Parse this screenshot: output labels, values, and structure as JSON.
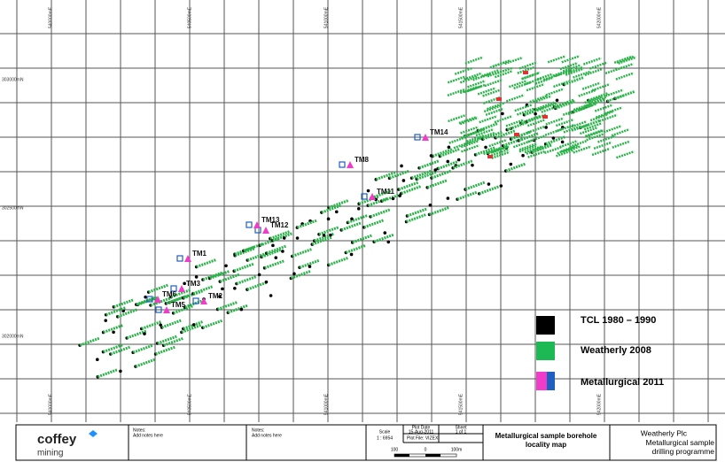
{
  "map": {
    "northings": [
      "303000mN",
      "302500mN",
      "302000mN"
    ],
    "eastings": [
      "540000mE",
      "540500mE",
      "541000mE",
      "541500mE",
      "542000mE"
    ],
    "borehole_labels": [
      "TM1",
      "TM2",
      "TM3",
      "TM5",
      "TM6",
      "TM8",
      "TM11",
      "TM12",
      "TM13",
      "TM14"
    ],
    "legend": [
      "TCL 1980 – 1990",
      "Weatherly 2008",
      "Metallurgical 2011"
    ]
  },
  "title_block": {
    "logo": "coffey",
    "logo_sub": "mining",
    "notes1_title": "Notes:",
    "notes1_text": "Add notes here",
    "notes2_title": "Notes:",
    "notes2_text": "Add notes here",
    "scale_title": "Scale",
    "scale_value": "1 : 6954",
    "plot_date_title": "Plot Date",
    "plot_date": "15-Aug-2011",
    "sheet_title": "Sheet",
    "sheet_value": "1 of 1",
    "plot_file": "Plot File: VIZEX",
    "scale_bar": [
      "100",
      "0",
      "100m"
    ],
    "map_title": "Metallurgical sample borehole locality map",
    "client": "Weatherly Plc",
    "project": "Metallurgical sample drilling programme"
  }
}
